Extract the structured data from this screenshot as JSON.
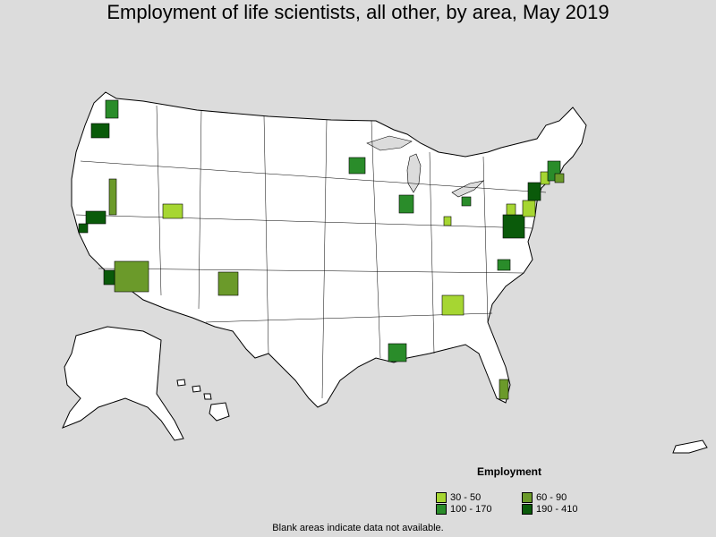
{
  "title": "Employment of life scientists, all other, by area, May 2019",
  "legend": {
    "title": "Employment",
    "items": [
      {
        "label": "30 - 50",
        "color": "#a6d632"
      },
      {
        "label": "60 - 90",
        "color": "#6b9a2a"
      },
      {
        "label": "100 - 170",
        "color": "#2a8c2a"
      },
      {
        "label": "190 - 410",
        "color": "#0a5a0a"
      }
    ]
  },
  "footnote": "Blank areas indicate data not available.",
  "colors": {
    "background": "#dcdcdc",
    "land": "#ffffff",
    "outline": "#000000"
  }
}
